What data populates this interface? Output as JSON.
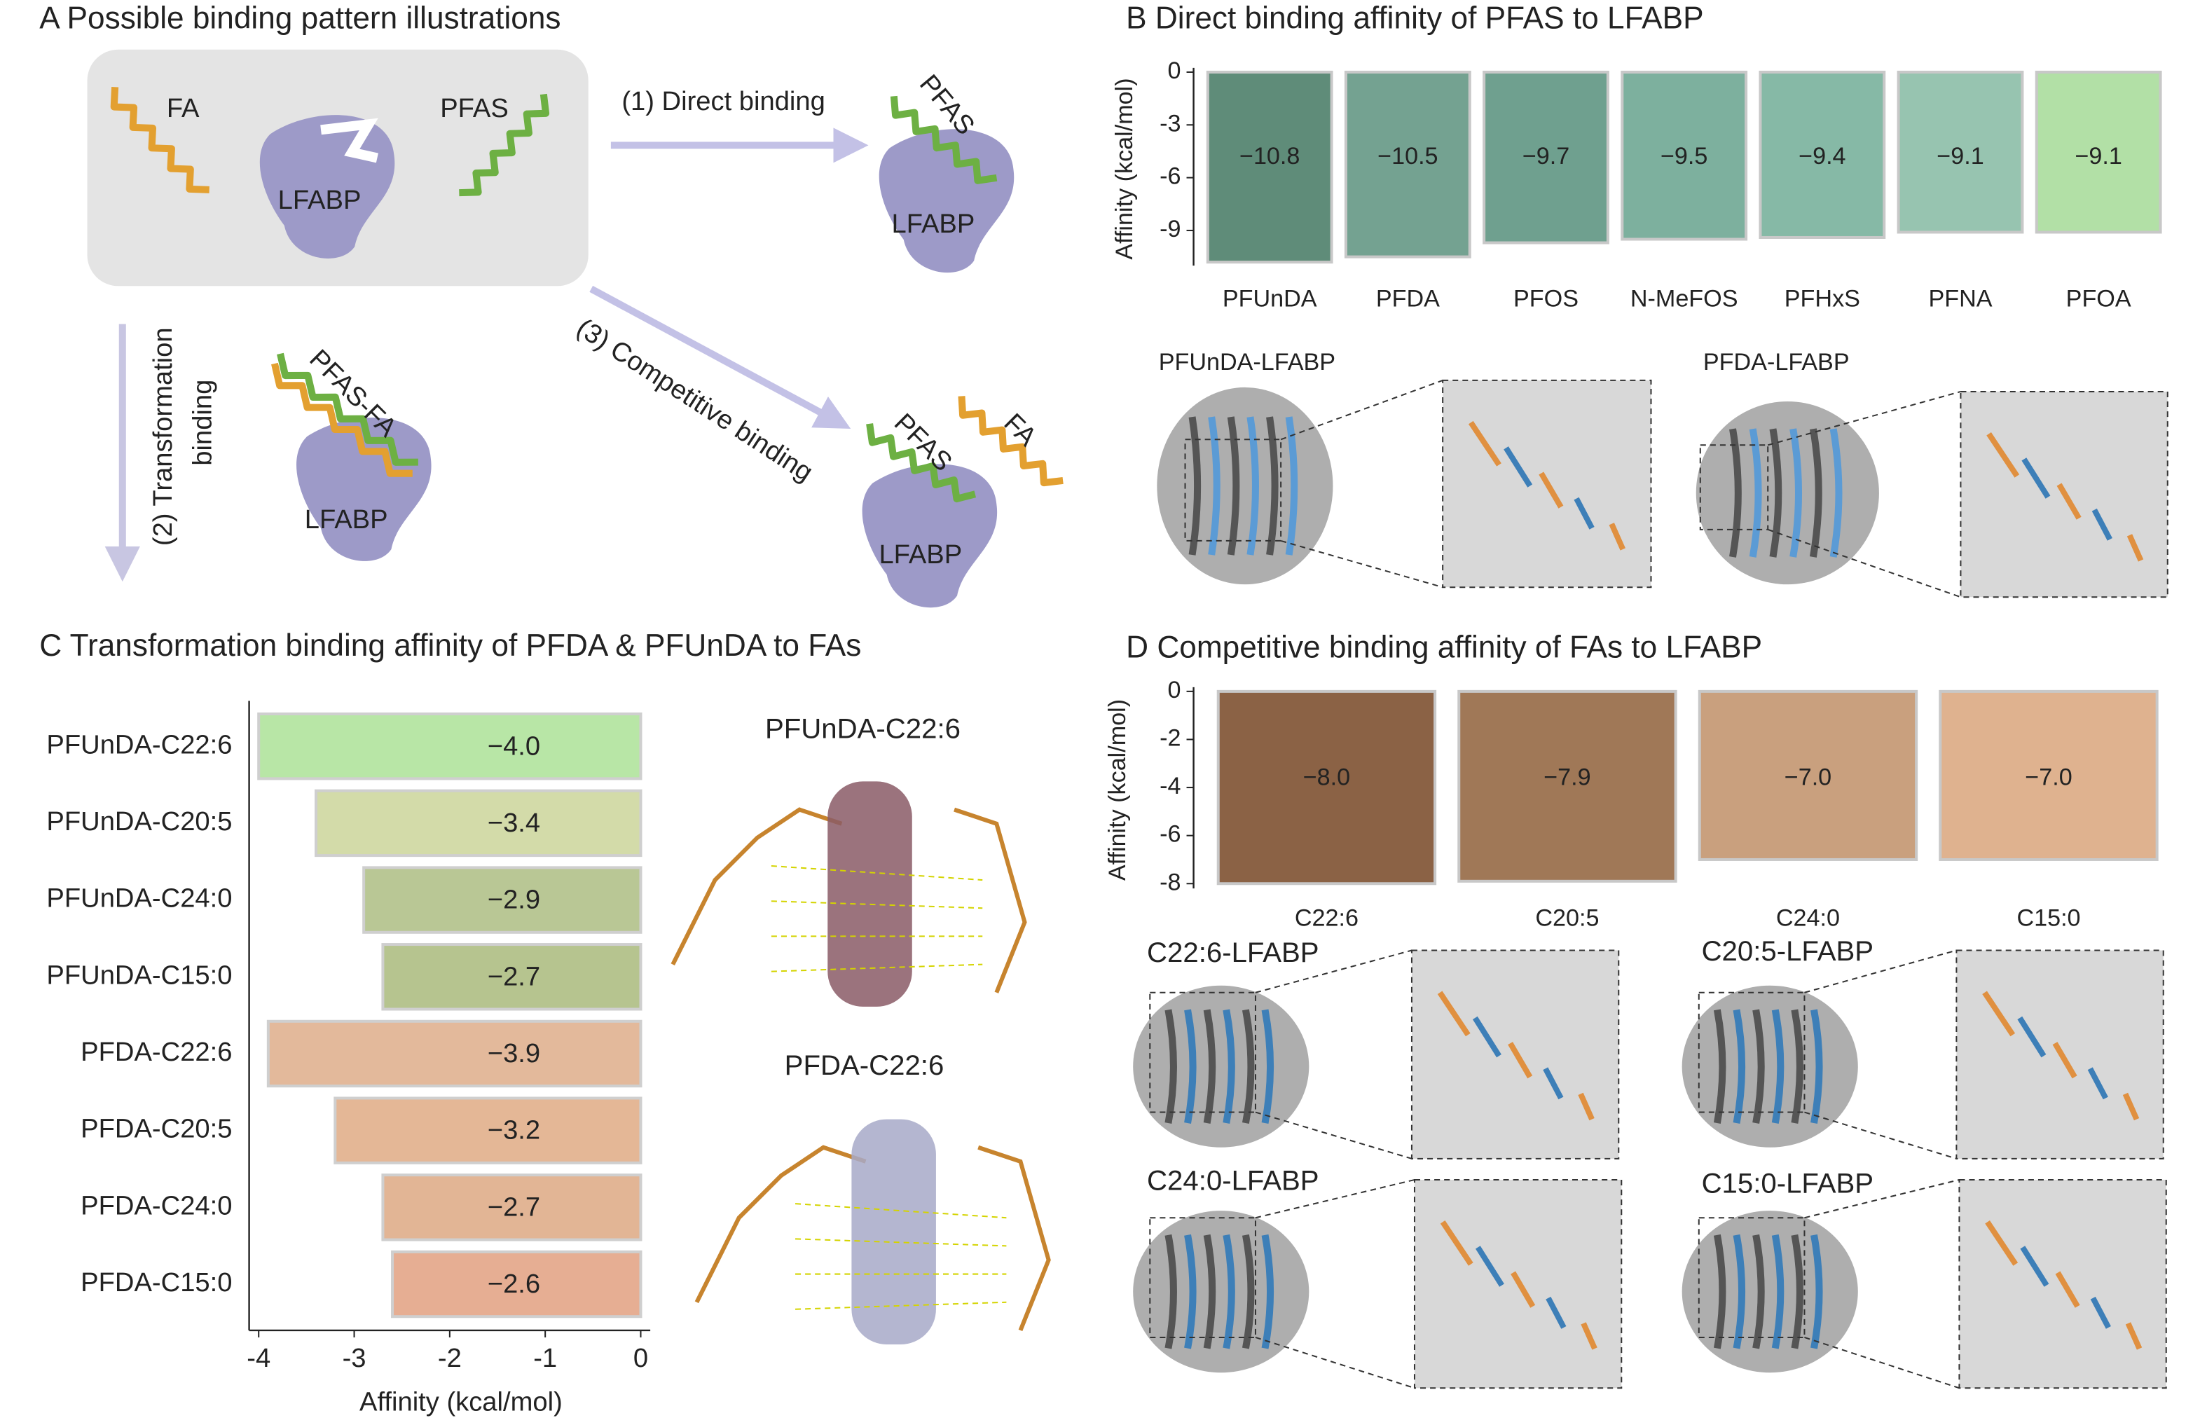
{
  "panel_a": {
    "title": "A Possible binding pattern illustrations",
    "fa_1": "FA",
    "pfas_1": "PFAS",
    "lfabp_1": "LFABP",
    "arrow_1": "(1) Direct binding",
    "pfas_2": "PFAS",
    "lfabp_2": "LFABP",
    "arrow_2_line1": "(2) Transformation",
    "arrow_2_line2": "binding",
    "pfas_fa": "PFAS-FA",
    "lfabp_3": "LFABP",
    "arrow_3": "(3) Competitive binding",
    "pfas_3": "PFAS",
    "fa_3": "FA",
    "lfabp_4": "LFABP"
  },
  "chart_data": [
    {
      "type": "bar",
      "title": "B Direct binding affinity of PFAS to LFABP",
      "ylabel": "Affinity (kcal/mol)",
      "categories": [
        "PFUnDA",
        "PFDA",
        "PFOS",
        "N-MeFOS",
        "PFHxS",
        "PFNA",
        "PFOA"
      ],
      "category_colors": [
        "#d62728",
        "#d62728",
        "#222222",
        "#222222",
        "#222222",
        "#222222",
        "#222222"
      ],
      "values": [
        -10.8,
        -10.5,
        -9.7,
        -9.5,
        -9.4,
        -9.1,
        -9.1
      ],
      "value_labels": [
        "−10.8",
        "−10.5",
        "−9.7",
        "−9.5",
        "−9.4",
        "−9.1",
        "−9.1"
      ],
      "colors": [
        "#5f8c79",
        "#74a291",
        "#6fa08f",
        "#7db09e",
        "#86b9a6",
        "#97c4b0",
        "#b2e0a6"
      ],
      "ylim": [
        -11,
        0
      ],
      "yticks": [
        0,
        -3,
        -6,
        -9
      ]
    },
    {
      "type": "barh",
      "title": "C Transformation binding affinity of PFDA & PFUnDA to FAs",
      "xlabel": "Affinity (kcal/mol)",
      "categories": [
        "PFUnDA-C22:6",
        "PFUnDA-C20:5",
        "PFUnDA-C24:0",
        "PFUnDA-C15:0",
        "PFDA-C22:6",
        "PFDA-C20:5",
        "PFDA-C24:0",
        "PFDA-C15:0"
      ],
      "values": [
        -4.0,
        -3.4,
        -2.9,
        -2.7,
        -3.9,
        -3.2,
        -2.7,
        -2.6
      ],
      "value_labels": [
        "−4.0",
        "−3.4",
        "−2.9",
        "−2.7",
        "−3.9",
        "−3.2",
        "−2.7",
        "−2.6"
      ],
      "colors": [
        "#b8e6a6",
        "#d3dba9",
        "#b9c795",
        "#b6c48f",
        "#e3b99b",
        "#e4b796",
        "#e2b595",
        "#e6ae93"
      ],
      "xlim": [
        -4.1,
        0.1
      ],
      "xticks": [
        -4,
        -3,
        -2,
        -1,
        0
      ]
    },
    {
      "type": "bar",
      "title": "D Competitive binding affinity of FAs to LFABP",
      "ylabel": "Affinity (kcal/mol)",
      "categories": [
        "C22:6",
        "C20:5",
        "C24:0",
        "C15:0"
      ],
      "values": [
        -8.0,
        -7.9,
        -7.0,
        -7.0
      ],
      "value_labels": [
        "−8.0",
        "−7.9",
        "−7.0",
        "−7.0"
      ],
      "colors": [
        "#8b6245",
        "#a07857",
        "#c9a07e",
        "#dfb28f"
      ],
      "ylim": [
        -8.2,
        0
      ],
      "yticks": [
        0,
        -2,
        -4,
        -6,
        -8
      ]
    }
  ],
  "structures": {
    "b": [
      "PFUnDA-LFABP",
      "PFDA-LFABP"
    ],
    "c": [
      "PFUnDA-C22:6",
      "PFDA-C22:6"
    ],
    "d": [
      "C22:6-LFABP",
      "C20:5-LFABP",
      "C24:0-LFABP",
      "C15:0-LFABP"
    ]
  }
}
